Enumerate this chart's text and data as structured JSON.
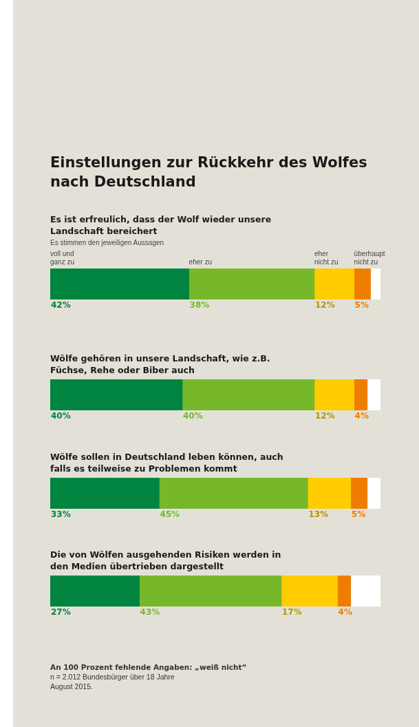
{
  "chart_data": [
    {
      "type": "other",
      "title": "Einstellungen zur Rückkehr des Wolfes nach Deutschland"
    },
    {
      "type": "bar",
      "orientation": "horizontal",
      "stacked": true,
      "title": "Es ist erfreulich, dass der Wolf wieder unsere Landschaft bereichert",
      "subtitle": "Es stimmen den jeweiligen Aussagen",
      "categories": [
        null
      ],
      "xlim": [
        0,
        100
      ],
      "tick_labels": false,
      "legend": "top",
      "series": [
        {
          "name": "voll und ganz zu",
          "color": "#00843f",
          "values": [
            42
          ],
          "value_labels": [
            "42%"
          ]
        },
        {
          "name": "eher zu",
          "color": "#76b82a",
          "values": [
            38
          ],
          "value_labels": [
            "38%"
          ]
        },
        {
          "name": "eher nicht zu",
          "color": "#ffcc00",
          "values": [
            12
          ],
          "value_labels": [
            "12%"
          ]
        },
        {
          "name": "überhaupt nicht zu",
          "color": "#ef7d00",
          "values": [
            5
          ],
          "value_labels": [
            "5%"
          ]
        },
        {
          "color": "#ffffff",
          "values": [
            3
          ],
          "value_labels": [
            null
          ]
        }
      ]
    },
    {
      "type": "bar",
      "orientation": "horizontal",
      "stacked": true,
      "title": "Wölfe gehören in unsere Landschaft, wie z.B. Füchse, Rehe oder Biber auch",
      "categories": [
        null
      ],
      "xlim": [
        0,
        100
      ],
      "tick_labels": false,
      "series": [
        {
          "color": "#00843f",
          "values": [
            40
          ],
          "value_labels": [
            "40%"
          ]
        },
        {
          "color": "#76b82a",
          "values": [
            40
          ],
          "value_labels": [
            "40%"
          ]
        },
        {
          "color": "#ffcc00",
          "values": [
            12
          ],
          "value_labels": [
            "12%"
          ]
        },
        {
          "color": "#ef7d00",
          "values": [
            4
          ],
          "value_labels": [
            "4%"
          ]
        },
        {
          "color": "#ffffff",
          "values": [
            4
          ],
          "value_labels": [
            null
          ]
        }
      ]
    },
    {
      "type": "bar",
      "orientation": "horizontal",
      "stacked": true,
      "title": "Wölfe sollen in Deutschland leben können, auch falls es teilweise zu Problemen kommt",
      "categories": [
        null
      ],
      "xlim": [
        0,
        100
      ],
      "tick_labels": false,
      "series": [
        {
          "color": "#00843f",
          "values": [
            33
          ],
          "value_labels": [
            "33%"
          ]
        },
        {
          "color": "#76b82a",
          "values": [
            45
          ],
          "value_labels": [
            "45%"
          ]
        },
        {
          "color": "#ffcc00",
          "values": [
            13
          ],
          "value_labels": [
            "13%"
          ]
        },
        {
          "color": "#ef7d00",
          "values": [
            5
          ],
          "value_labels": [
            "5%"
          ]
        },
        {
          "color": "#ffffff",
          "values": [
            4
          ],
          "value_labels": [
            null
          ]
        }
      ]
    },
    {
      "type": "bar",
      "orientation": "horizontal",
      "stacked": true,
      "title": "Die von Wölfen ausgehenden Risiken werden in den Medien übertrieben dargestellt",
      "categories": [
        null
      ],
      "xlim": [
        0,
        100
      ],
      "tick_labels": false,
      "annotations": [
        "An 100 Prozent fehlende Angaben: „weiß nicht“",
        "n = 2.012 Bundesbürger über 18 Jahre",
        "August 2015."
      ],
      "series": [
        {
          "color": "#00843f",
          "values": [
            27
          ],
          "value_labels": [
            "27%"
          ]
        },
        {
          "color": "#76b82a",
          "values": [
            43
          ],
          "value_labels": [
            "43%"
          ]
        },
        {
          "color": "#ffcc00",
          "values": [
            17
          ],
          "value_labels": [
            "17%"
          ]
        },
        {
          "color": "#ef7d00",
          "values": [
            4
          ],
          "value_labels": [
            "4%"
          ]
        },
        {
          "color": "#ffffff",
          "values": [
            9
          ],
          "value_labels": [
            null
          ]
        }
      ]
    }
  ]
}
